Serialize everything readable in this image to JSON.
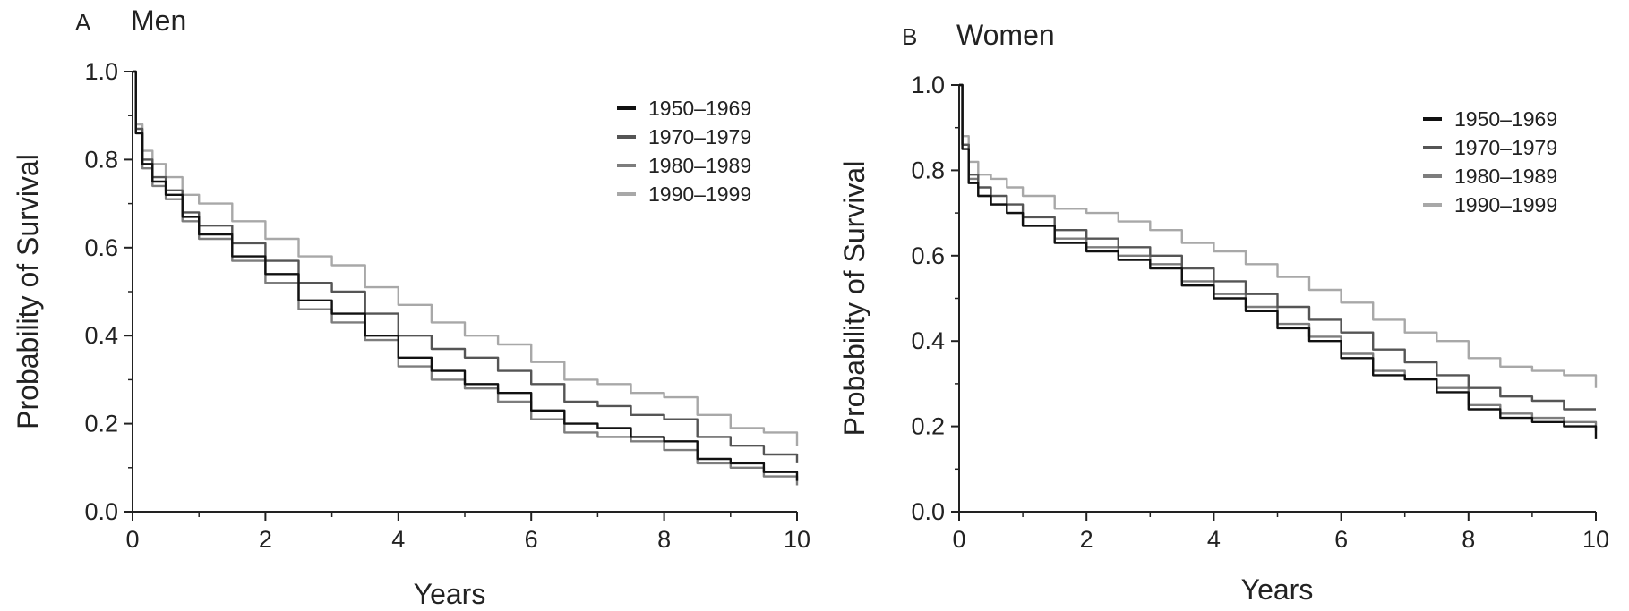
{
  "chart_data": [
    {
      "type": "line",
      "panel_letter": "A",
      "title": "Men",
      "xlabel": "Years",
      "ylabel": "Probability of Survival",
      "xlim": [
        0,
        10
      ],
      "ylim": [
        0,
        1
      ],
      "x_ticks": [
        "0",
        "2",
        "4",
        "6",
        "8",
        "10"
      ],
      "y_ticks": [
        "0.0",
        "0.2",
        "0.4",
        "0.6",
        "0.8",
        "1.0"
      ],
      "legend": "top-right",
      "x": [
        0,
        0.05,
        0.15,
        0.3,
        0.5,
        0.75,
        1,
        1.5,
        2,
        2.5,
        3,
        3.5,
        4,
        4.5,
        5,
        5.5,
        6,
        6.5,
        7,
        7.5,
        8,
        8.5,
        9,
        9.5,
        10
      ],
      "series": [
        {
          "name": "1950–1969",
          "color": "#111111",
          "values": [
            1.0,
            0.86,
            0.79,
            0.75,
            0.72,
            0.67,
            0.63,
            0.58,
            0.54,
            0.48,
            0.45,
            0.4,
            0.35,
            0.32,
            0.29,
            0.27,
            0.23,
            0.2,
            0.19,
            0.17,
            0.16,
            0.12,
            0.11,
            0.09,
            0.07
          ]
        },
        {
          "name": "1970–1979",
          "color": "#555555",
          "values": [
            1.0,
            0.87,
            0.8,
            0.76,
            0.73,
            0.68,
            0.65,
            0.61,
            0.57,
            0.52,
            0.5,
            0.45,
            0.4,
            0.37,
            0.35,
            0.32,
            0.29,
            0.25,
            0.24,
            0.22,
            0.21,
            0.17,
            0.15,
            0.13,
            0.11
          ]
        },
        {
          "name": "1980–1989",
          "color": "#7d7d7d",
          "values": [
            1.0,
            0.86,
            0.78,
            0.74,
            0.71,
            0.66,
            0.62,
            0.57,
            0.52,
            0.46,
            0.43,
            0.39,
            0.33,
            0.3,
            0.28,
            0.25,
            0.21,
            0.18,
            0.17,
            0.16,
            0.14,
            0.11,
            0.1,
            0.08,
            0.06
          ]
        },
        {
          "name": "1990–1999",
          "color": "#a8a8a8",
          "values": [
            1.0,
            0.88,
            0.82,
            0.79,
            0.76,
            0.72,
            0.7,
            0.66,
            0.62,
            0.58,
            0.56,
            0.51,
            0.47,
            0.43,
            0.4,
            0.38,
            0.34,
            0.3,
            0.29,
            0.27,
            0.26,
            0.22,
            0.19,
            0.18,
            0.15
          ]
        }
      ]
    },
    {
      "type": "line",
      "panel_letter": "B",
      "title": "Women",
      "xlabel": "Years",
      "ylabel": "Probability of Survival",
      "xlim": [
        0,
        10
      ],
      "ylim": [
        0,
        1
      ],
      "x_ticks": [
        "0",
        "2",
        "4",
        "6",
        "8",
        "10"
      ],
      "y_ticks": [
        "0.0",
        "0.2",
        "0.4",
        "0.6",
        "0.8",
        "1.0"
      ],
      "legend": "top-right",
      "x": [
        0,
        0.05,
        0.15,
        0.3,
        0.5,
        0.75,
        1,
        1.5,
        2,
        2.5,
        3,
        3.5,
        4,
        4.5,
        5,
        5.5,
        6,
        6.5,
        7,
        7.5,
        8,
        8.5,
        9,
        9.5,
        10
      ],
      "series": [
        {
          "name": "1950–1969",
          "color": "#111111",
          "values": [
            1.0,
            0.85,
            0.77,
            0.74,
            0.72,
            0.7,
            0.67,
            0.63,
            0.61,
            0.59,
            0.57,
            0.53,
            0.5,
            0.47,
            0.43,
            0.4,
            0.36,
            0.32,
            0.31,
            0.28,
            0.24,
            0.22,
            0.21,
            0.2,
            0.17
          ]
        },
        {
          "name": "1970–1979",
          "color": "#555555",
          "values": [
            1.0,
            0.86,
            0.79,
            0.76,
            0.74,
            0.72,
            0.69,
            0.66,
            0.64,
            0.62,
            0.6,
            0.57,
            0.54,
            0.51,
            0.48,
            0.45,
            0.42,
            0.38,
            0.35,
            0.32,
            0.29,
            0.27,
            0.26,
            0.24,
            0.24
          ]
        },
        {
          "name": "1980–1989",
          "color": "#7d7d7d",
          "values": [
            1.0,
            0.86,
            0.78,
            0.74,
            0.72,
            0.7,
            0.67,
            0.64,
            0.62,
            0.6,
            0.58,
            0.54,
            0.51,
            0.48,
            0.44,
            0.41,
            0.37,
            0.33,
            0.31,
            0.29,
            0.25,
            0.23,
            0.22,
            0.21,
            0.19
          ]
        },
        {
          "name": "1990–1999",
          "color": "#a8a8a8",
          "values": [
            1.0,
            0.88,
            0.82,
            0.79,
            0.78,
            0.76,
            0.74,
            0.71,
            0.7,
            0.68,
            0.66,
            0.63,
            0.61,
            0.58,
            0.55,
            0.52,
            0.49,
            0.45,
            0.42,
            0.4,
            0.36,
            0.34,
            0.33,
            0.32,
            0.29
          ]
        }
      ]
    }
  ]
}
